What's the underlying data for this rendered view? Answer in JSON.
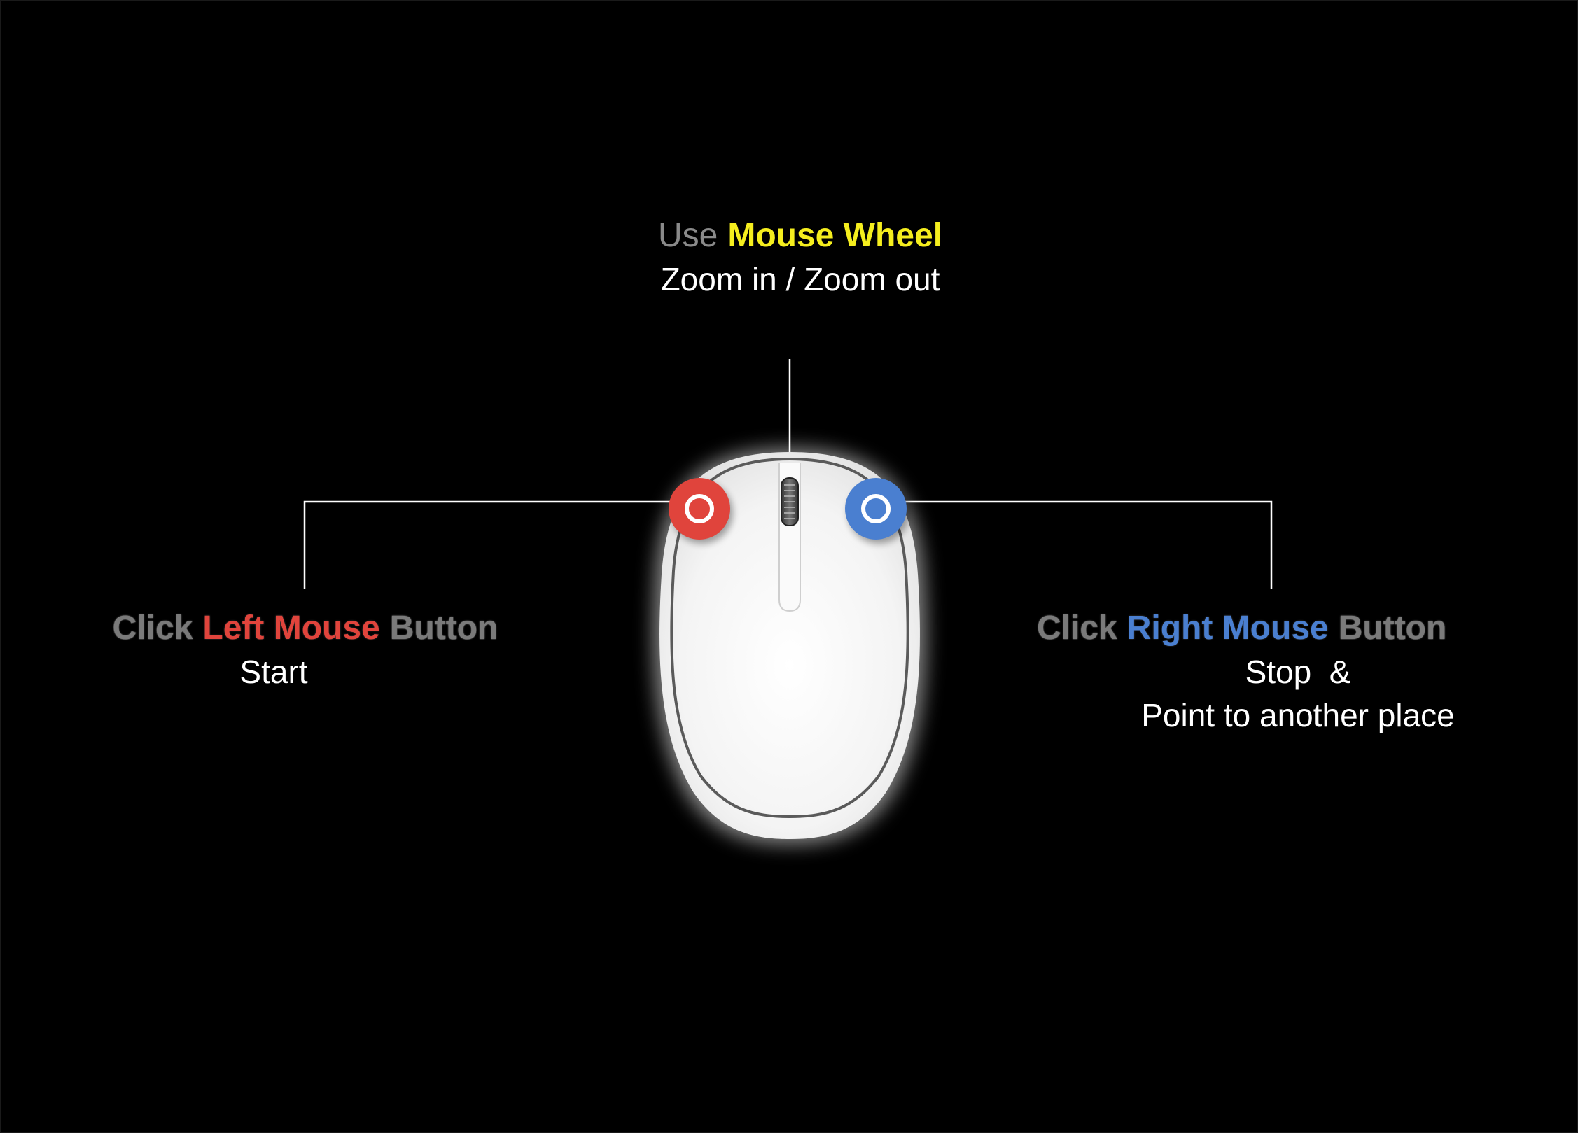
{
  "colors": {
    "background": "#000000",
    "wheel_accent": "#f5ee1e",
    "left_accent": "#e0443c",
    "right_accent": "#4a7fd0",
    "connector_line": "#ffffff",
    "plain_word": "#7a7a7a"
  },
  "wheel": {
    "heading_prefix": "Use",
    "heading_accent": "Mouse Wheel",
    "description": "Zoom in / Zoom out"
  },
  "left_button": {
    "heading_prefix": "Click",
    "heading_accent": "Left Mouse",
    "heading_suffix": "Button",
    "description": "Start",
    "marker_icon": "red-ring-marker-icon"
  },
  "right_button": {
    "heading_prefix": "Click",
    "heading_accent": "Right Mouse",
    "heading_suffix": "Button",
    "description_line1": "Stop  &",
    "description_line2": "Point to another place",
    "marker_icon": "blue-ring-marker-icon"
  },
  "mouse_icon": "computer-mouse-icon"
}
